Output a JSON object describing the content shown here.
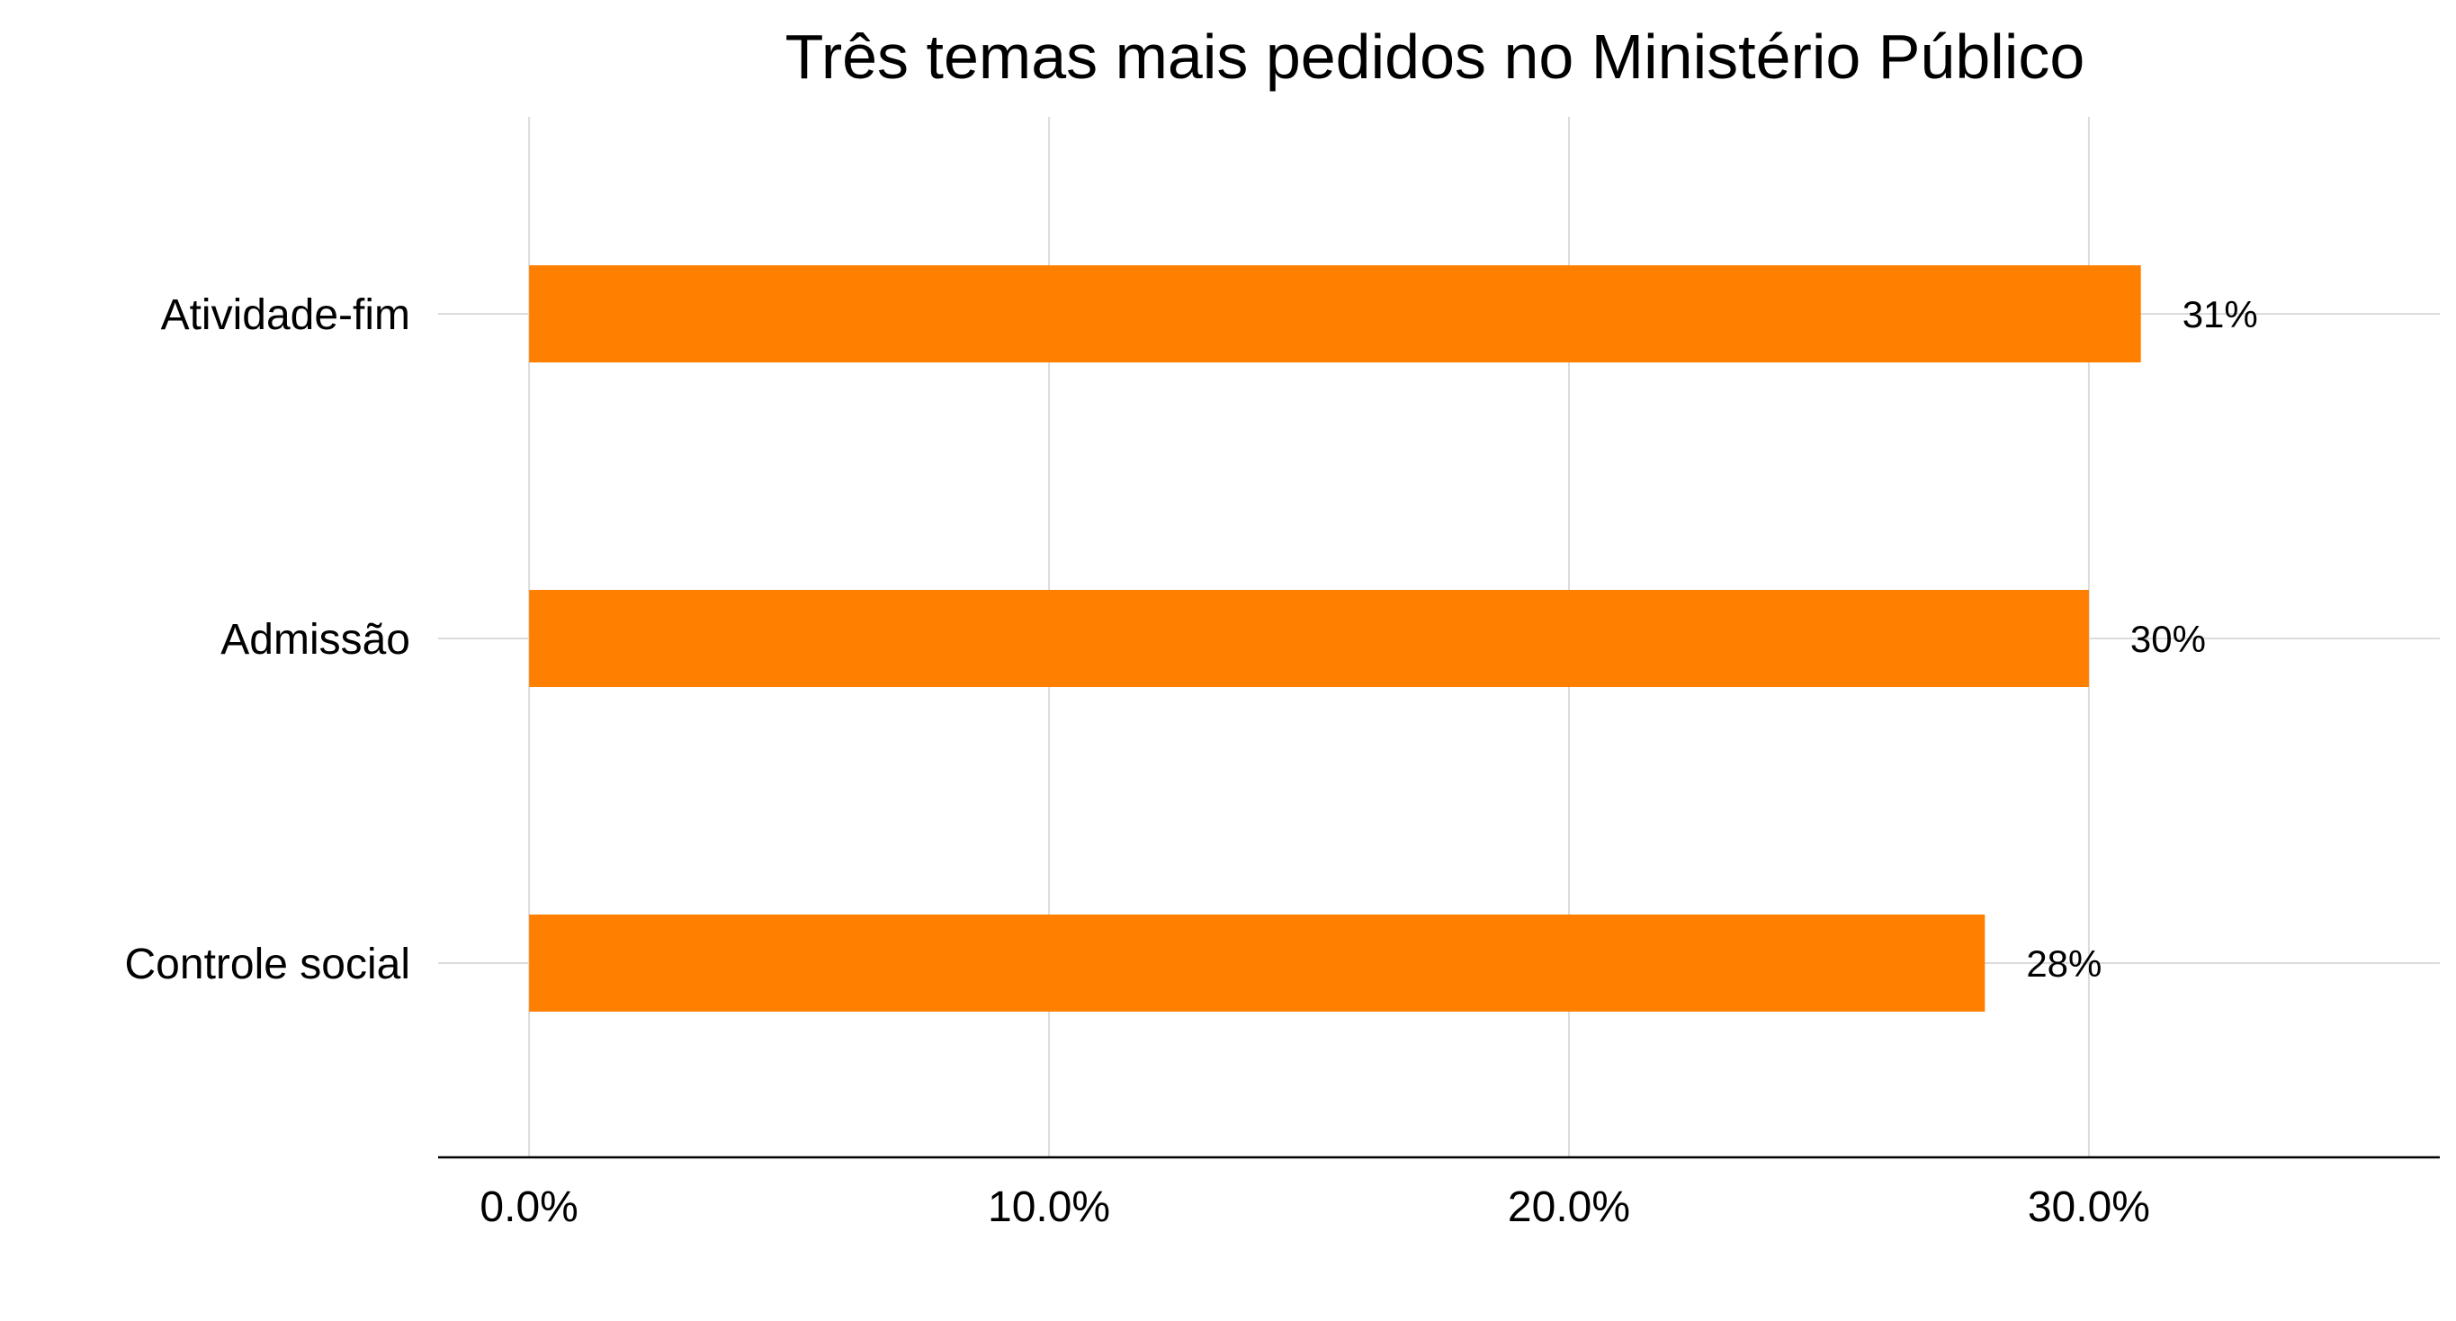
{
  "chart_data": {
    "type": "bar",
    "orientation": "horizontal",
    "title": "Três temas mais pedidos no Ministério Público",
    "xlabel": "",
    "ylabel": "",
    "categories": [
      "Atividade-fim",
      "Admissão",
      "Controle social"
    ],
    "values": [
      31,
      30,
      28
    ],
    "data_labels": [
      "31%",
      "30%",
      "28%"
    ],
    "x_ticks": [
      0,
      10,
      20,
      30
    ],
    "x_tick_labels": [
      "0.0%",
      "10.0%",
      "20.0%",
      "30.0%"
    ],
    "xlim": [
      -1.75,
      36.75
    ],
    "grid": true,
    "legend": "none",
    "colors": {
      "bar": "#FF8000",
      "grid": "#dcdcdc",
      "axis": "#000000"
    }
  }
}
